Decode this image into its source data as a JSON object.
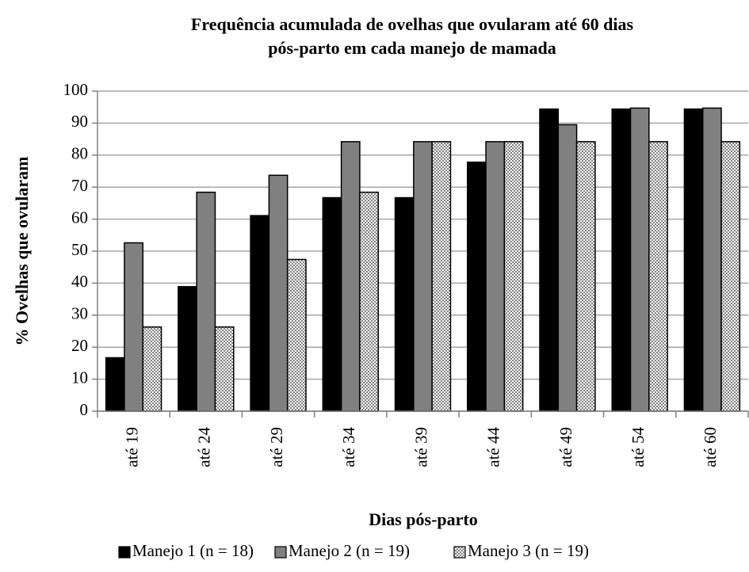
{
  "chart_data": {
    "type": "bar",
    "title": [
      "Frequência acumulada de ovelhas que ovularam até 60 dias",
      "pós-parto em cada manejo de mamada"
    ],
    "x_label": "Dias pós-parto",
    "y_label": "% Ovelhas que ovularam",
    "categories": [
      "até 19",
      "até 24",
      "até 29",
      "até 34",
      "até 39",
      "até 44",
      "até 49",
      "até 54",
      "até 60"
    ],
    "series": [
      {
        "name": "Manejo 1 (n = 18)",
        "color": "#000000",
        "values": [
          16.7,
          38.9,
          61.1,
          66.7,
          66.7,
          77.8,
          94.4,
          94.4,
          94.4
        ]
      },
      {
        "name": "Manejo 2 (n = 19)",
        "color": "#808080",
        "values": [
          52.6,
          68.4,
          73.7,
          84.2,
          84.2,
          84.2,
          89.5,
          94.7,
          94.7
        ]
      },
      {
        "name": "Manejo 3 (n = 19)",
        "color": "#a0a0a0",
        "pattern": "checker",
        "values": [
          26.3,
          26.3,
          47.4,
          68.4,
          84.2,
          84.2,
          84.2,
          84.2,
          84.2
        ]
      }
    ],
    "ylim": [
      0,
      100
    ],
    "yticks": [
      0,
      10,
      20,
      30,
      40,
      50,
      60,
      70,
      80,
      90,
      100
    ],
    "grid": true,
    "legend": "bottom"
  }
}
